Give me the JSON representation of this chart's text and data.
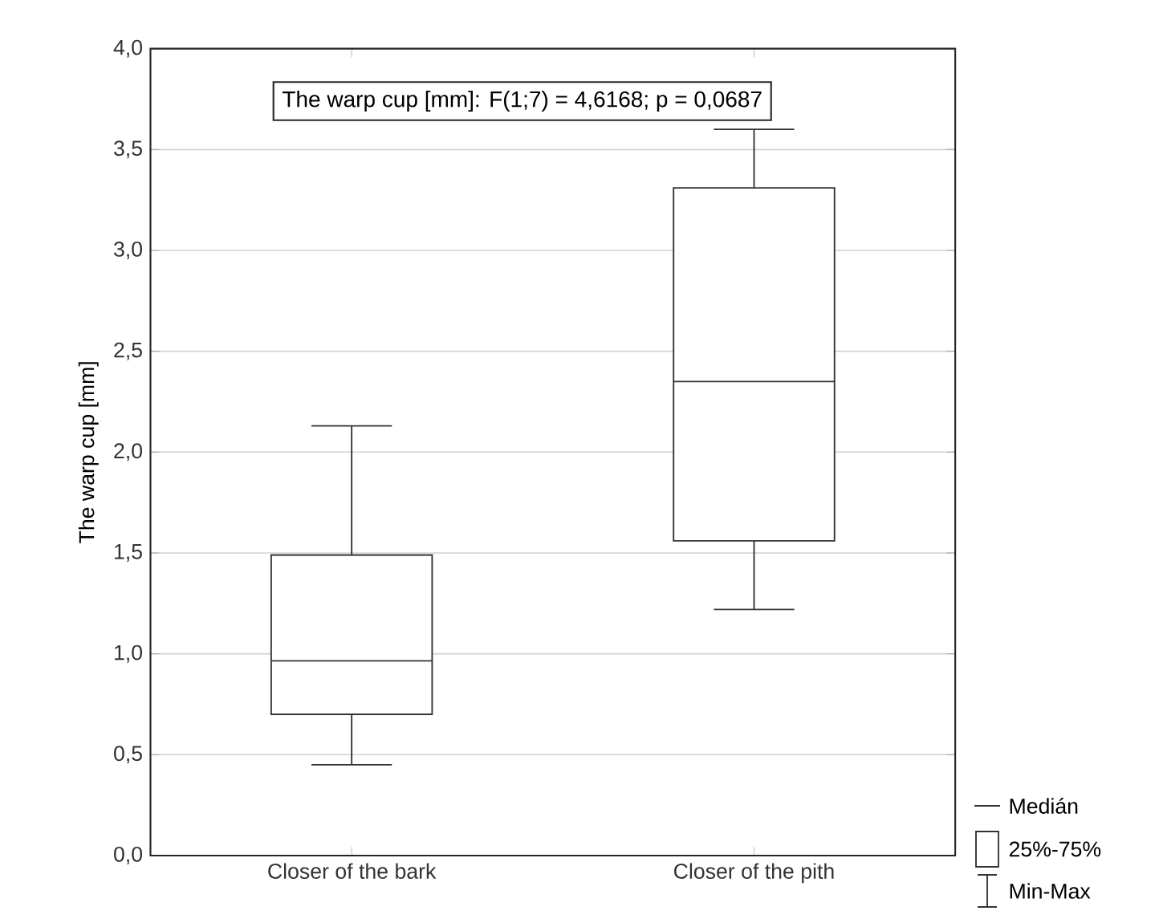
{
  "chart_data": {
    "type": "box",
    "ylabel": "The warp cup [mm]",
    "categories": [
      "Closer of the bark",
      "Closer of the pith"
    ],
    "boxes": [
      {
        "low": 0.45,
        "q1": 0.7,
        "median": 0.965,
        "q3": 1.49,
        "high": 2.13
      },
      {
        "low": 1.22,
        "q1": 1.56,
        "median": 2.35,
        "q3": 3.31,
        "high": 3.6
      }
    ],
    "color": "#333333",
    "ylim": [
      0,
      4
    ],
    "yticks": [
      {
        "value": 0,
        "label": "0,0"
      },
      {
        "value": 0.5,
        "label": "0,5"
      },
      {
        "value": 1,
        "label": "1,0"
      },
      {
        "value": 1.5,
        "label": "1,5"
      },
      {
        "value": 2,
        "label": "2,0"
      },
      {
        "value": 2.5,
        "label": "2,5"
      },
      {
        "value": 3,
        "label": "3,0"
      },
      {
        "value": 3.5,
        "label": "3,5"
      },
      {
        "value": 4,
        "label": "4,0"
      }
    ],
    "grid": "y",
    "annotations": [
      "The warp cup [mm]:   F(1;7) = 4,6168; p = 0,0687",
      "Medián",
      "25%-75%",
      "Min-Max"
    ]
  }
}
